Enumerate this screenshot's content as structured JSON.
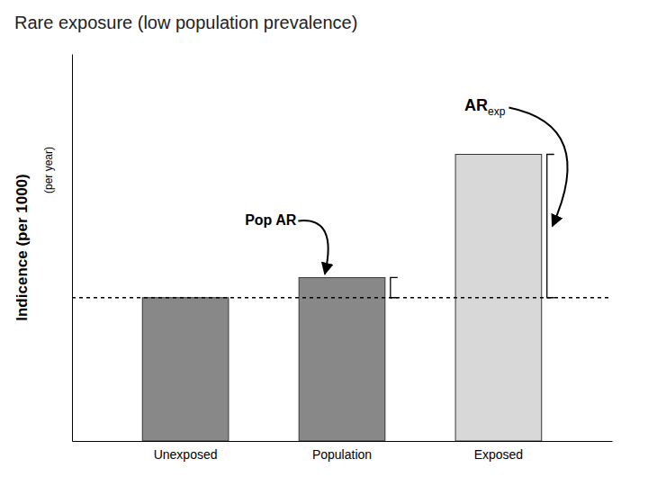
{
  "chart_data": {
    "type": "bar",
    "title": "Rare exposure (low population prevalence)",
    "ylabel": "Indicence (per 1000)",
    "categories": [
      "Unexposed",
      "Population",
      "Exposed"
    ],
    "values": [
      5,
      5.7,
      10
    ],
    "colors": [
      "#888888",
      "#888888",
      "#d8d8d8"
    ],
    "reference_y": 5,
    "ylim": [
      0,
      13.5
    ],
    "yticks": [],
    "tick_labels": "x",
    "grid": false,
    "annotations": [
      {
        "text": "(per year)",
        "axis": "y"
      },
      {
        "text": "Pop AR",
        "category": "Population"
      },
      {
        "text": "AR",
        "sub": "exp",
        "category": "Exposed"
      }
    ]
  }
}
